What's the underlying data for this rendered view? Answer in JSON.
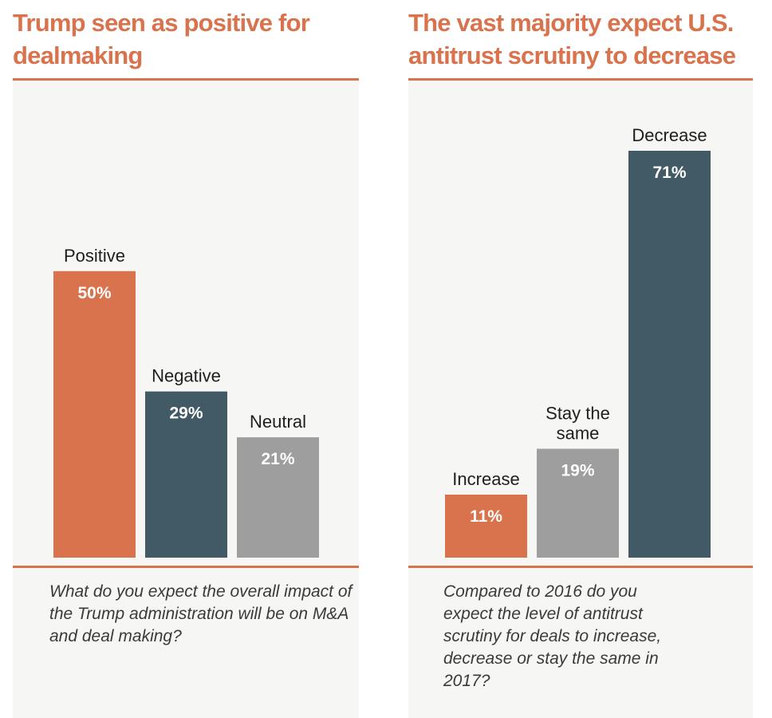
{
  "colors": {
    "accent": "#d9734d",
    "dark": "#415a66",
    "gray": "#9e9e9e",
    "panel_bg": "#f6f6f5"
  },
  "chart_data": [
    {
      "type": "bar",
      "title": "Trump seen as positive for dealmaking",
      "categories": [
        "Positive",
        "Negative",
        "Neutral"
      ],
      "values": [
        50,
        29,
        21
      ],
      "value_labels": [
        "50%",
        "29%",
        "21%"
      ],
      "bar_colors": [
        "#d9734d",
        "#415a66",
        "#9e9e9e"
      ],
      "ylim": [
        0,
        71
      ],
      "question": "What do you expect the overall impact of the Trump administration will be on M&A and deal making?"
    },
    {
      "type": "bar",
      "title": "The vast majority expect U.S. antitrust scrutiny to decrease",
      "categories": [
        "Increase",
        "Stay the same",
        "Decrease"
      ],
      "category_label_lines": [
        [
          "Increase"
        ],
        [
          "Stay the",
          "same"
        ],
        [
          "Decrease"
        ]
      ],
      "values": [
        11,
        19,
        71
      ],
      "value_labels": [
        "11%",
        "19%",
        "71%"
      ],
      "bar_colors": [
        "#d9734d",
        "#9e9e9e",
        "#415a66"
      ],
      "ylim": [
        0,
        71
      ],
      "question": "Compared to 2016 do you expect the level of antitrust scrutiny for deals to increase, decrease or stay the same in 2017?"
    }
  ]
}
